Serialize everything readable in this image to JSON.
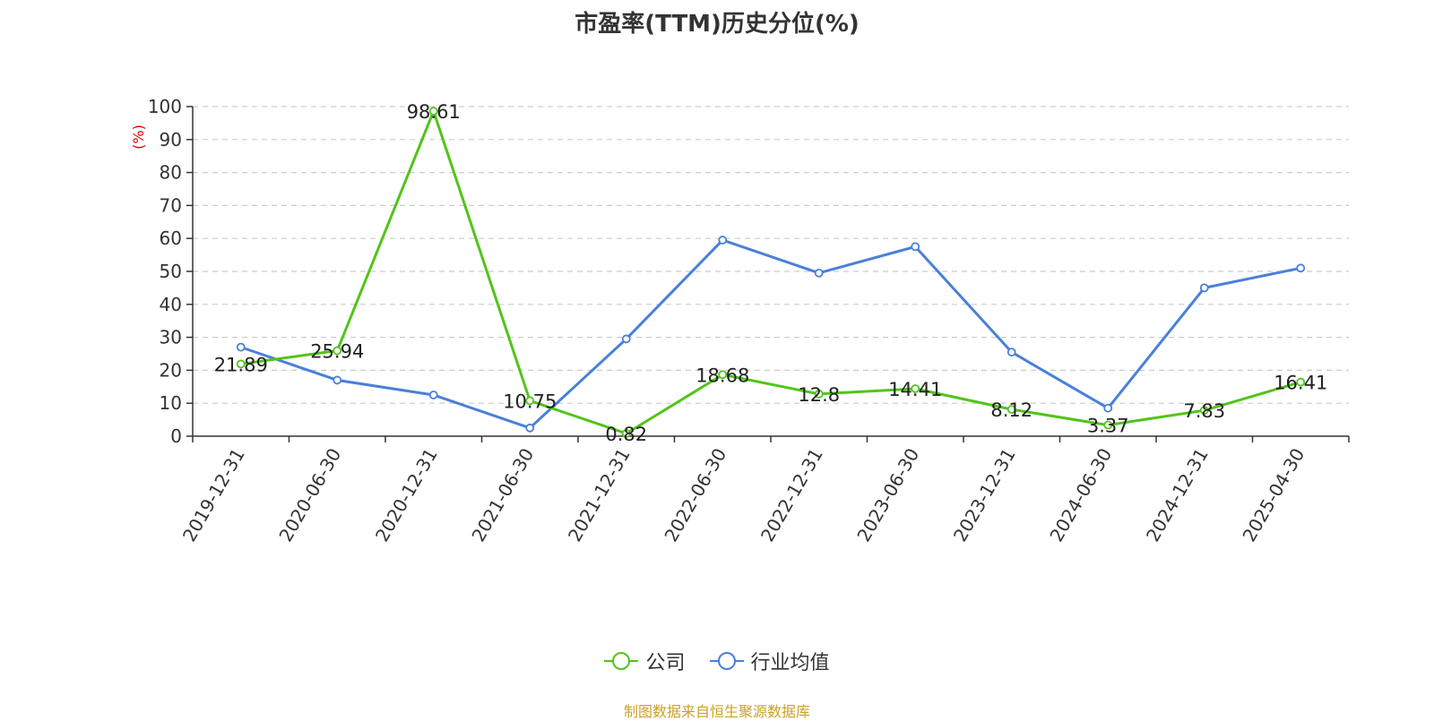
{
  "title": "市盈率(TTM)历史分位(%)",
  "source": "制图数据来自恒生聚源数据库",
  "colors": {
    "company": "#52c41a",
    "industry": "#4a7fdb",
    "axis": "#333333",
    "grid": "#cccccc",
    "ylabel": "#e00000"
  },
  "chart_data": {
    "type": "line",
    "title": "市盈率(TTM)历史分位(%)",
    "ylabel": "(%)",
    "xlabel": "",
    "ylim": [
      0,
      100
    ],
    "yticks": [
      0,
      10,
      20,
      30,
      40,
      50,
      60,
      70,
      80,
      90,
      100
    ],
    "grid": true,
    "legend_position": "bottom-center",
    "categories": [
      "2019-12-31",
      "2020-06-30",
      "2020-12-31",
      "2021-06-30",
      "2021-12-31",
      "2022-06-30",
      "2022-12-31",
      "2023-06-30",
      "2023-12-31",
      "2024-06-30",
      "2024-12-31",
      "2025-04-30"
    ],
    "series": [
      {
        "name": "公司",
        "color": "#52c41a",
        "show_labels": true,
        "values": [
          21.89,
          25.94,
          98.61,
          10.75,
          0.82,
          18.68,
          12.8,
          14.41,
          8.12,
          3.37,
          7.83,
          16.41
        ],
        "labels": [
          "21.89",
          "25.94",
          "98.61",
          "10.75",
          "0.82",
          "18.68",
          "12.8",
          "14.41",
          "8.12",
          "3.37",
          "7.83",
          "16.41"
        ]
      },
      {
        "name": "行业均值",
        "color": "#4a7fdb",
        "show_labels": false,
        "values": [
          27.0,
          17.0,
          12.5,
          2.5,
          29.5,
          59.5,
          49.5,
          57.5,
          25.5,
          8.5,
          45.0,
          51.0
        ]
      }
    ]
  }
}
